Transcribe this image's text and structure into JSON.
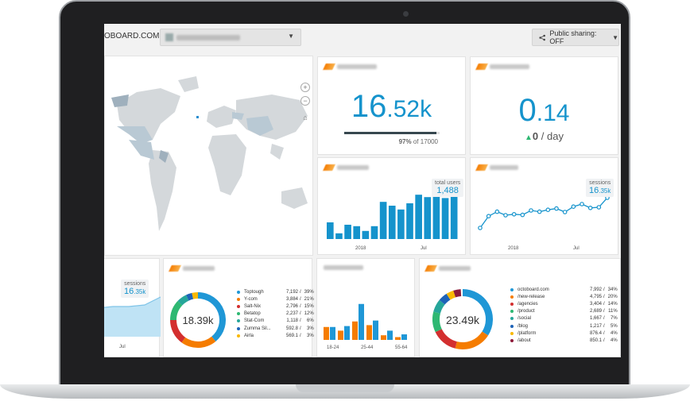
{
  "header": {
    "brand": "OBOARD.COM",
    "share_label": "Public sharing: OFF"
  },
  "visits": {
    "value_int": "16",
    "value_dec": ".52k",
    "progress_pct": "97%",
    "progress_target": "of 17000",
    "progress_fraction": 0.97
  },
  "bounce": {
    "value_int": "0",
    "value_dec": ".14",
    "change": "0",
    "change_suffix": "/ day"
  },
  "new_users": {
    "tooltip_label": "total users",
    "tooltip_value": "1,488",
    "x_labels": [
      "2018",
      "Jul"
    ],
    "bars": [
      0.35,
      0.12,
      0.3,
      0.27,
      0.17,
      0.27,
      0.78,
      0.7,
      0.62,
      0.75,
      0.93,
      0.88,
      0.96,
      0.86,
      0.92
    ]
  },
  "sessions": {
    "tooltip_label": "sessions",
    "tooltip_int": "16",
    "tooltip_dec": ".35k",
    "x_labels": [
      "2018",
      "Jul"
    ],
    "points": [
      0.05,
      0.42,
      0.56,
      0.45,
      0.48,
      0.46,
      0.6,
      0.56,
      0.62,
      0.66,
      0.55,
      0.72,
      0.8,
      0.68,
      0.7,
      1.0
    ]
  },
  "sessions_area": {
    "tooltip_label": "sessions",
    "tooltip_int": "16",
    "tooltip_dec": ".35k",
    "x_label": "Jul"
  },
  "top_products": {
    "center_value": "18.39k",
    "items": [
      {
        "name": "Toptough",
        "value": "7,192",
        "pct": "39%",
        "color": "#1f97d6"
      },
      {
        "name": "Y-com",
        "value": "3,884",
        "pct": "21%",
        "color": "#f57c00"
      },
      {
        "name": "Salt-Nix",
        "value": "2,796",
        "pct": "15%",
        "color": "#d32f2f"
      },
      {
        "name": "Betatop",
        "value": "2,237",
        "pct": "12%",
        "color": "#2eb872"
      },
      {
        "name": "Stat-Com",
        "value": "1,118",
        "pct": "6%",
        "color": "#26a69a"
      },
      {
        "name": "Zumma Sil...",
        "value": "592.8",
        "pct": "3%",
        "color": "#1e63b8"
      },
      {
        "name": "Airla",
        "value": "569.1",
        "pct": "3%",
        "color": "#f9b800"
      }
    ],
    "slices": [
      0.39,
      0.21,
      0.15,
      0.12,
      0.06,
      0.035,
      0.035
    ]
  },
  "demographics": {
    "x_labels": [
      "18-24",
      "25-44",
      "55-64"
    ],
    "bars": [
      {
        "blue": 0.28,
        "orange": 0.28
      },
      {
        "blue": 0.3,
        "orange": 0.2
      },
      {
        "blue": 0.78,
        "orange": 0.4
      },
      {
        "blue": 0.42,
        "orange": 0.32
      },
      {
        "blue": 0.2,
        "orange": 0.1
      },
      {
        "blue": 0.12,
        "orange": 0.06
      }
    ],
    "colors": {
      "blue": "#1f97d6",
      "orange": "#f57c00"
    }
  },
  "top_pages": {
    "center_value": "23.49k",
    "items": [
      {
        "name": "octoboard.com",
        "value": "7,992",
        "pct": "34%",
        "color": "#1f97d6"
      },
      {
        "name": "/new-release",
        "value": "4,795",
        "pct": "20%",
        "color": "#f57c00"
      },
      {
        "name": "/agencies",
        "value": "3,404",
        "pct": "14%",
        "color": "#d32f2f"
      },
      {
        "name": "/product",
        "value": "2,689",
        "pct": "11%",
        "color": "#2eb872"
      },
      {
        "name": "/social",
        "value": "1,667",
        "pct": "7%",
        "color": "#26a69a"
      },
      {
        "name": "/blog",
        "value": "1,217",
        "pct": "5%",
        "color": "#1e63b8"
      },
      {
        "name": "/platform",
        "value": "876.4",
        "pct": "4%",
        "color": "#f9b800"
      },
      {
        "name": "/about",
        "value": "850.1",
        "pct": "4%",
        "color": "#8e1b3a"
      }
    ],
    "slices": [
      0.34,
      0.2,
      0.14,
      0.11,
      0.07,
      0.05,
      0.04,
      0.04
    ]
  },
  "map": {
    "zoom_in": "+",
    "zoom_out": "−",
    "home": "⌂"
  },
  "colors": {
    "accent": "#1593cc",
    "bar": "#1593cc",
    "green": "#2eb872"
  }
}
